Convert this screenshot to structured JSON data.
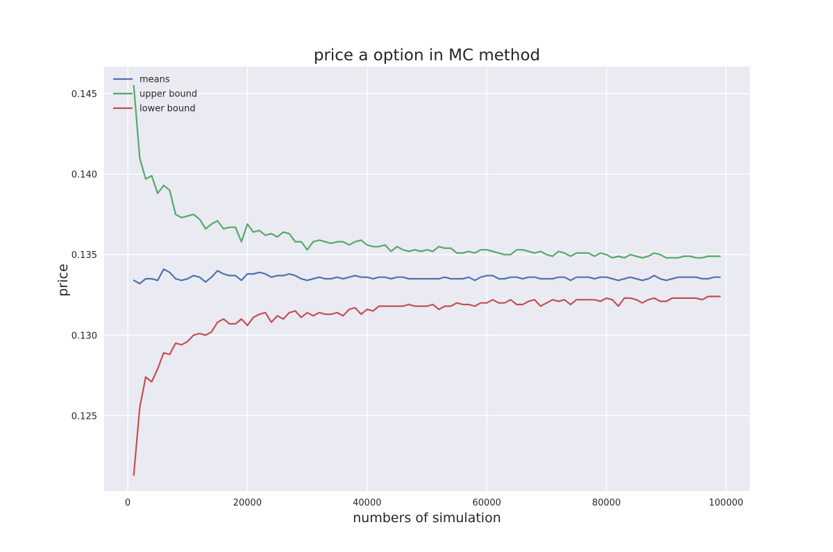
{
  "chart_data": {
    "type": "line",
    "title": "price a option in MC method",
    "xlabel": "numbers of simulation",
    "ylabel": "price",
    "xlim": [
      -3950,
      103950
    ],
    "ylim": [
      0.12032,
      0.14668
    ],
    "x_ticks": [
      0,
      20000,
      40000,
      60000,
      80000,
      100000
    ],
    "x_tick_labels": [
      "0",
      "20000",
      "40000",
      "60000",
      "80000",
      "100000"
    ],
    "y_ticks": [
      0.125,
      0.13,
      0.135,
      0.14,
      0.145
    ],
    "y_tick_labels": [
      "0.125",
      "0.130",
      "0.135",
      "0.140",
      "0.145"
    ],
    "grid": true,
    "legend_position": "top-left",
    "x": [
      1000,
      2000,
      3000,
      4000,
      5000,
      6000,
      7000,
      8000,
      9000,
      10000,
      11000,
      12000,
      13000,
      14000,
      15000,
      16000,
      17000,
      18000,
      19000,
      20000,
      21000,
      22000,
      23000,
      24000,
      25000,
      26000,
      27000,
      28000,
      29000,
      30000,
      31000,
      32000,
      33000,
      34000,
      35000,
      36000,
      37000,
      38000,
      39000,
      40000,
      41000,
      42000,
      43000,
      44000,
      45000,
      46000,
      47000,
      48000,
      49000,
      50000,
      51000,
      52000,
      53000,
      54000,
      55000,
      56000,
      57000,
      58000,
      59000,
      60000,
      61000,
      62000,
      63000,
      64000,
      65000,
      66000,
      67000,
      68000,
      69000,
      70000,
      71000,
      72000,
      73000,
      74000,
      75000,
      76000,
      77000,
      78000,
      79000,
      80000,
      81000,
      82000,
      83000,
      84000,
      85000,
      86000,
      87000,
      88000,
      89000,
      90000,
      91000,
      92000,
      93000,
      94000,
      95000,
      96000,
      97000,
      98000,
      99000
    ],
    "series": [
      {
        "name": "means",
        "color": "#4c72b0",
        "values": [
          0.1334,
          0.1332,
          0.1335,
          0.1335,
          0.1334,
          0.1341,
          0.1339,
          0.1335,
          0.1334,
          0.1335,
          0.1337,
          0.1336,
          0.1333,
          0.1336,
          0.134,
          0.1338,
          0.1337,
          0.1337,
          0.1334,
          0.1338,
          0.1338,
          0.1339,
          0.1338,
          0.1336,
          0.1337,
          0.1337,
          0.1338,
          0.1337,
          0.1335,
          0.1334,
          0.1335,
          0.1336,
          0.1335,
          0.1335,
          0.1336,
          0.1335,
          0.1336,
          0.1337,
          0.1336,
          0.1336,
          0.1335,
          0.1336,
          0.1336,
          0.1335,
          0.1336,
          0.1336,
          0.1335,
          0.1335,
          0.1335,
          0.1335,
          0.1335,
          0.1335,
          0.1336,
          0.1335,
          0.1335,
          0.1335,
          0.1336,
          0.1334,
          0.1336,
          0.1337,
          0.1337,
          0.1335,
          0.1335,
          0.1336,
          0.1336,
          0.1335,
          0.1336,
          0.1336,
          0.1335,
          0.1335,
          0.1335,
          0.1336,
          0.1336,
          0.1334,
          0.1336,
          0.1336,
          0.1336,
          0.1335,
          0.1336,
          0.1336,
          0.1335,
          0.1334,
          0.1335,
          0.1336,
          0.1335,
          0.1334,
          0.1335,
          0.1337,
          0.1335,
          0.1334,
          0.1335,
          0.1336,
          0.1336,
          0.1336,
          0.1336,
          0.1335,
          0.1335,
          0.1336,
          0.1336
        ]
      },
      {
        "name": "upper bound",
        "color": "#55a868",
        "values": [
          0.1455,
          0.141,
          0.1397,
          0.1399,
          0.1388,
          0.1393,
          0.139,
          0.1375,
          0.1373,
          0.1374,
          0.1375,
          0.1372,
          0.1366,
          0.1369,
          0.1371,
          0.1366,
          0.1367,
          0.1367,
          0.1358,
          0.1369,
          0.1364,
          0.1365,
          0.1362,
          0.1363,
          0.1361,
          0.1364,
          0.1363,
          0.1358,
          0.1358,
          0.1353,
          0.1358,
          0.1359,
          0.1358,
          0.1357,
          0.1358,
          0.1358,
          0.1356,
          0.1358,
          0.1359,
          0.1356,
          0.1355,
          0.1355,
          0.1356,
          0.1352,
          0.1355,
          0.1353,
          0.1352,
          0.1353,
          0.1352,
          0.1353,
          0.1352,
          0.1355,
          0.1354,
          0.1354,
          0.1351,
          0.1351,
          0.1352,
          0.1351,
          0.1353,
          0.1353,
          0.1352,
          0.1351,
          0.135,
          0.135,
          0.1353,
          0.1353,
          0.1352,
          0.1351,
          0.1352,
          0.135,
          0.1349,
          0.1352,
          0.1351,
          0.1349,
          0.1351,
          0.1351,
          0.1351,
          0.1349,
          0.1351,
          0.135,
          0.1348,
          0.1349,
          0.1348,
          0.135,
          0.1349,
          0.1348,
          0.1349,
          0.1351,
          0.135,
          0.1348,
          0.1348,
          0.1348,
          0.1349,
          0.1349,
          0.1348,
          0.1348,
          0.1349,
          0.1349,
          0.1349
        ]
      },
      {
        "name": "lower bound",
        "color": "#c44e52",
        "values": [
          0.1213,
          0.1255,
          0.1274,
          0.1271,
          0.1279,
          0.1289,
          0.1288,
          0.1295,
          0.1294,
          0.1296,
          0.13,
          0.1301,
          0.13,
          0.1302,
          0.1308,
          0.131,
          0.1307,
          0.1307,
          0.131,
          0.1306,
          0.1311,
          0.1313,
          0.1314,
          0.1308,
          0.1312,
          0.131,
          0.1314,
          0.1315,
          0.1311,
          0.1314,
          0.1312,
          0.1314,
          0.1313,
          0.1313,
          0.1314,
          0.1312,
          0.1316,
          0.1317,
          0.1313,
          0.1316,
          0.1315,
          0.1318,
          0.1318,
          0.1318,
          0.1318,
          0.1318,
          0.1319,
          0.1318,
          0.1318,
          0.1318,
          0.1319,
          0.1316,
          0.1318,
          0.1318,
          0.132,
          0.1319,
          0.1319,
          0.1318,
          0.132,
          0.132,
          0.1322,
          0.132,
          0.132,
          0.1322,
          0.1319,
          0.1319,
          0.1321,
          0.1322,
          0.1318,
          0.132,
          0.1322,
          0.1321,
          0.1322,
          0.1319,
          0.1322,
          0.1322,
          0.1322,
          0.1322,
          0.1321,
          0.1323,
          0.1322,
          0.1318,
          0.1323,
          0.1323,
          0.1322,
          0.132,
          0.1322,
          0.1323,
          0.1321,
          0.1321,
          0.1323,
          0.1323,
          0.1323,
          0.1323,
          0.1323,
          0.1322,
          0.1324,
          0.1324,
          0.1324
        ]
      }
    ]
  },
  "colors": {
    "figure_background": "#ffffff",
    "plot_background": "#eaeaf2",
    "grid": "#ffffff",
    "text": "#262626"
  }
}
